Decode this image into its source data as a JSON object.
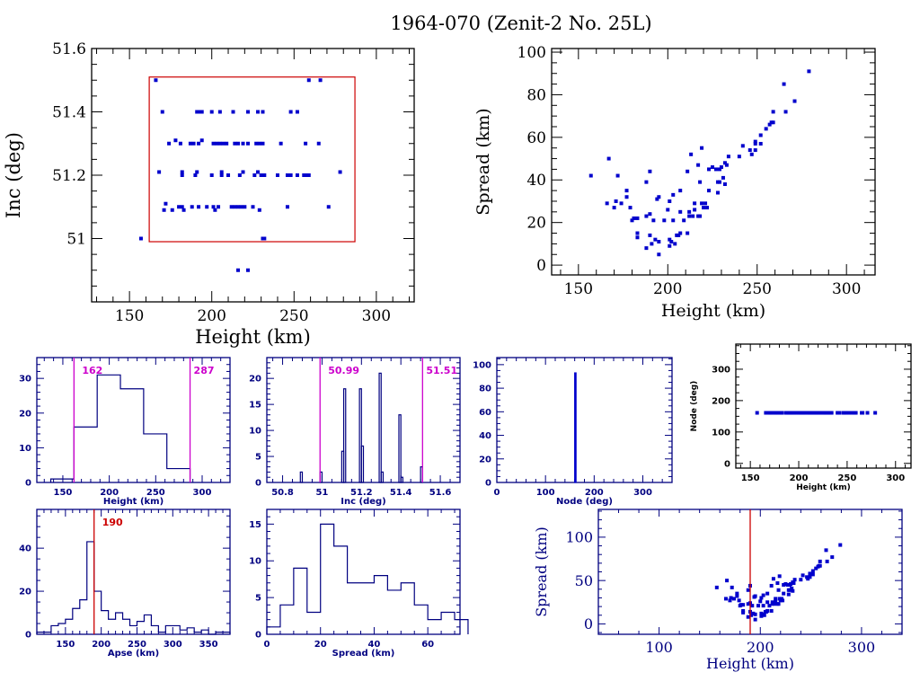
{
  "title": "1964-070 (Zenit-2 No. 25L)",
  "colors": {
    "points": "#0000cc",
    "frame_main": "#000000",
    "frame_small": "#000080",
    "box_red": "#cc0000",
    "limit_magenta": "#cc00cc",
    "marker_red": "#cc0000"
  },
  "chart_data": [
    {
      "id": "inc-vs-height",
      "type": "scatter",
      "title": "",
      "xlabel": "Height (km)",
      "ylabel": "Inc (deg)",
      "xlim": [
        127,
        323
      ],
      "ylim": [
        50.8,
        51.6
      ],
      "xticks": [
        150,
        200,
        250,
        300
      ],
      "yticks": [
        51,
        51.2,
        51.4,
        51.6
      ],
      "ytick_labels": [
        "51",
        "51.2",
        "51.4",
        "51.6"
      ],
      "selection_box": {
        "x": [
          162,
          287
        ],
        "y": [
          50.99,
          51.51
        ]
      },
      "points": [
        [
          166,
          51.5
        ],
        [
          259,
          51.5
        ],
        [
          266,
          51.5
        ],
        [
          170,
          51.4
        ],
        [
          191,
          51.4
        ],
        [
          193,
          51.4
        ],
        [
          194,
          51.4
        ],
        [
          200,
          51.4
        ],
        [
          205,
          51.4
        ],
        [
          213,
          51.4
        ],
        [
          222,
          51.4
        ],
        [
          228,
          51.4
        ],
        [
          231,
          51.4
        ],
        [
          248,
          51.4
        ],
        [
          252,
          51.4
        ],
        [
          174,
          51.3
        ],
        [
          178,
          51.31
        ],
        [
          181,
          51.3
        ],
        [
          187,
          51.3
        ],
        [
          189,
          51.3
        ],
        [
          192,
          51.3
        ],
        [
          194,
          51.31
        ],
        [
          201,
          51.3
        ],
        [
          203,
          51.3
        ],
        [
          205,
          51.3
        ],
        [
          207,
          51.3
        ],
        [
          209,
          51.3
        ],
        [
          214,
          51.3
        ],
        [
          216,
          51.3
        ],
        [
          219,
          51.3
        ],
        [
          222,
          51.3
        ],
        [
          227,
          51.3
        ],
        [
          229,
          51.3
        ],
        [
          231,
          51.3
        ],
        [
          242,
          51.3
        ],
        [
          257,
          51.3
        ],
        [
          265,
          51.3
        ],
        [
          168,
          51.21
        ],
        [
          182,
          51.2
        ],
        [
          182,
          51.21
        ],
        [
          190,
          51.2
        ],
        [
          191,
          51.21
        ],
        [
          200,
          51.2
        ],
        [
          206,
          51.2
        ],
        [
          206,
          51.21
        ],
        [
          210,
          51.2
        ],
        [
          217,
          51.2
        ],
        [
          219,
          51.21
        ],
        [
          226,
          51.2
        ],
        [
          228,
          51.21
        ],
        [
          230,
          51.2
        ],
        [
          232,
          51.2
        ],
        [
          240,
          51.2
        ],
        [
          246,
          51.2
        ],
        [
          248,
          51.2
        ],
        [
          252,
          51.2
        ],
        [
          256,
          51.2
        ],
        [
          258,
          51.2
        ],
        [
          259,
          51.2
        ],
        [
          278,
          51.21
        ],
        [
          171,
          51.09
        ],
        [
          172,
          51.11
        ],
        [
          176,
          51.09
        ],
        [
          180,
          51.1
        ],
        [
          182,
          51.1
        ],
        [
          183,
          51.09
        ],
        [
          188,
          51.1
        ],
        [
          192,
          51.1
        ],
        [
          197,
          51.1
        ],
        [
          201,
          51.1
        ],
        [
          202,
          51.09
        ],
        [
          204,
          51.1
        ],
        [
          212,
          51.1
        ],
        [
          214,
          51.1
        ],
        [
          216,
          51.1
        ],
        [
          218,
          51.1
        ],
        [
          220,
          51.1
        ],
        [
          225,
          51.1
        ],
        [
          229,
          51.09
        ],
        [
          246,
          51.1
        ],
        [
          271,
          51.1
        ],
        [
          157,
          51.0
        ],
        [
          231,
          51.0
        ],
        [
          232,
          51.0
        ],
        [
          216,
          50.9
        ],
        [
          222,
          50.9
        ]
      ]
    },
    {
      "id": "spread-vs-height",
      "type": "scatter",
      "xlabel": "Height (km)",
      "ylabel": "Spread (km)",
      "xlim": [
        135,
        316
      ],
      "ylim": [
        -4.6,
        101.7
      ],
      "xticks": [
        150,
        200,
        250,
        300
      ],
      "yticks": [
        0,
        20,
        40,
        60,
        80,
        100
      ],
      "points": [
        [
          157,
          42
        ],
        [
          167,
          50
        ],
        [
          172,
          42
        ],
        [
          166,
          29
        ],
        [
          171,
          30
        ],
        [
          170,
          27
        ],
        [
          174,
          29
        ],
        [
          177,
          35
        ],
        [
          177,
          32
        ],
        [
          179,
          27
        ],
        [
          180,
          21
        ],
        [
          181,
          22
        ],
        [
          183,
          22
        ],
        [
          183,
          15
        ],
        [
          183,
          13
        ],
        [
          188,
          39
        ],
        [
          188,
          23
        ],
        [
          188,
          8
        ],
        [
          190,
          44
        ],
        [
          190,
          24
        ],
        [
          190,
          14
        ],
        [
          191,
          10
        ],
        [
          192,
          21
        ],
        [
          193,
          12
        ],
        [
          194,
          31
        ],
        [
          195,
          32
        ],
        [
          195,
          11
        ],
        [
          195,
          5
        ],
        [
          198,
          21
        ],
        [
          200,
          26
        ],
        [
          201,
          30
        ],
        [
          201,
          12
        ],
        [
          201,
          9
        ],
        [
          202,
          11
        ],
        [
          203,
          33
        ],
        [
          203,
          21
        ],
        [
          204,
          10
        ],
        [
          205,
          14
        ],
        [
          206,
          14
        ],
        [
          207,
          35
        ],
        [
          207,
          25
        ],
        [
          207,
          15
        ],
        [
          209,
          21
        ],
        [
          211,
          44
        ],
        [
          211,
          15
        ],
        [
          212,
          25
        ],
        [
          212,
          23
        ],
        [
          213,
          52
        ],
        [
          214,
          23
        ],
        [
          215,
          26
        ],
        [
          215,
          29
        ],
        [
          217,
          47
        ],
        [
          217,
          23
        ],
        [
          218,
          23
        ],
        [
          218,
          39
        ],
        [
          219,
          55
        ],
        [
          219,
          29
        ],
        [
          220,
          27
        ],
        [
          221,
          29
        ],
        [
          222,
          27
        ],
        [
          223,
          45
        ],
        [
          223,
          35
        ],
        [
          225,
          46
        ],
        [
          227,
          45
        ],
        [
          228,
          34
        ],
        [
          228,
          39
        ],
        [
          229,
          45
        ],
        [
          229,
          39
        ],
        [
          230,
          46
        ],
        [
          231,
          41
        ],
        [
          232,
          48
        ],
        [
          232,
          38
        ],
        [
          233,
          47
        ],
        [
          234,
          51
        ],
        [
          240,
          51
        ],
        [
          242,
          56
        ],
        [
          246,
          54
        ],
        [
          247,
          52
        ],
        [
          249,
          54
        ],
        [
          249,
          57
        ],
        [
          249,
          58
        ],
        [
          252,
          57
        ],
        [
          252,
          61
        ],
        [
          255,
          64
        ],
        [
          257,
          66
        ],
        [
          258,
          67
        ],
        [
          259,
          67
        ],
        [
          259,
          72
        ],
        [
          265,
          85
        ],
        [
          266,
          72
        ],
        [
          271,
          77
        ],
        [
          279,
          91
        ]
      ]
    },
    {
      "id": "height-histogram",
      "type": "bar",
      "histogram": true,
      "xlabel": "Height (km)",
      "ylabel": "",
      "xlim": [
        122,
        330
      ],
      "ylim": [
        0,
        36
      ],
      "xticks": [
        150,
        200,
        250,
        300
      ],
      "yticks": [
        0,
        10,
        20,
        30
      ],
      "bin_edges": [
        137,
        162,
        187,
        212,
        237,
        262,
        287
      ],
      "values": [
        1,
        16,
        31,
        27,
        14,
        4
      ],
      "annotations": [
        {
          "x": 162,
          "label": "162"
        },
        {
          "x": 287,
          "label": "287"
        }
      ]
    },
    {
      "id": "inc-histogram",
      "type": "bar",
      "histogram": true,
      "xlabel": "Inc (deg)",
      "ylabel": "",
      "xlim": [
        50.72,
        51.7
      ],
      "ylim": [
        0,
        24
      ],
      "xticks": [
        50.8,
        51,
        51.2,
        51.4,
        51.6
      ],
      "xtick_labels": [
        "50.8",
        "51",
        "51.2",
        "51.4",
        "51.6"
      ],
      "yticks": [
        0,
        5,
        10,
        15,
        20
      ],
      "bins": [
        {
          "x0": 50.89,
          "x1": 50.9,
          "v": 2
        },
        {
          "x0": 50.99,
          "x1": 51.0,
          "v": 2
        },
        {
          "x0": 51.1,
          "x1": 51.11,
          "v": 6
        },
        {
          "x0": 51.11,
          "x1": 51.12,
          "v": 18
        },
        {
          "x0": 51.19,
          "x1": 51.2,
          "v": 18
        },
        {
          "x0": 51.2,
          "x1": 51.21,
          "v": 7
        },
        {
          "x0": 51.29,
          "x1": 51.3,
          "v": 21
        },
        {
          "x0": 51.3,
          "x1": 51.31,
          "v": 2
        },
        {
          "x0": 51.39,
          "x1": 51.4,
          "v": 13
        },
        {
          "x0": 51.4,
          "x1": 51.41,
          "v": 1
        },
        {
          "x0": 51.5,
          "x1": 51.51,
          "v": 3
        }
      ],
      "annotations": [
        {
          "x": 50.99,
          "label": "50.99"
        },
        {
          "x": 51.51,
          "label": "51.51"
        }
      ]
    },
    {
      "id": "node-histogram",
      "type": "bar",
      "histogram": true,
      "xlabel": "Node (deg)",
      "ylabel": "",
      "xlim": [
        0,
        360
      ],
      "ylim": [
        0,
        106
      ],
      "xticks": [
        0,
        100,
        200,
        300
      ],
      "yticks": [
        0,
        20,
        40,
        60,
        80,
        100
      ],
      "bins": [
        {
          "x0": 160,
          "x1": 162,
          "v": 93
        }
      ]
    },
    {
      "id": "node-vs-height",
      "type": "scatter",
      "xlabel": "Height (km)",
      "ylabel": "Node (deg)",
      "xlim": [
        135,
        316
      ],
      "ylim": [
        -15,
        380
      ],
      "xticks": [
        150,
        200,
        250,
        300
      ],
      "yticks": [
        0,
        100,
        200,
        300
      ],
      "node_value": 161,
      "heights": [
        157,
        166,
        168,
        170,
        171,
        172,
        174,
        176,
        177,
        178,
        180,
        181,
        182,
        183,
        187,
        188,
        189,
        190,
        191,
        192,
        193,
        194,
        195,
        197,
        198,
        200,
        201,
        202,
        203,
        204,
        205,
        206,
        207,
        209,
        210,
        211,
        212,
        213,
        214,
        215,
        216,
        217,
        218,
        219,
        220,
        221,
        222,
        223,
        225,
        226,
        227,
        228,
        229,
        230,
        231,
        232,
        233,
        234,
        240,
        242,
        246,
        247,
        248,
        249,
        252,
        255,
        257,
        258,
        259,
        265,
        266,
        271,
        279
      ]
    },
    {
      "id": "apse-histogram",
      "type": "bar",
      "histogram": true,
      "xlabel": "Apse (km)",
      "ylabel": "",
      "xlim": [
        110,
        380
      ],
      "ylim": [
        0,
        58
      ],
      "xticks": [
        150,
        200,
        250,
        300,
        350
      ],
      "yticks": [
        0,
        20,
        40
      ],
      "bin_start": 110,
      "bin_width": 10,
      "values": [
        1,
        1,
        4,
        5,
        7,
        12,
        16,
        43,
        20,
        11,
        7,
        10,
        7,
        4,
        6,
        9,
        4,
        1,
        4,
        4,
        2,
        3,
        1,
        2,
        0,
        1,
        1
      ],
      "annotations": [
        {
          "x": 190,
          "label": "190"
        }
      ]
    },
    {
      "id": "spread-histogram",
      "type": "bar",
      "histogram": true,
      "xlabel": "Spread (km)",
      "ylabel": "",
      "xlim": [
        0,
        72
      ],
      "ylim": [
        0,
        17
      ],
      "xticks": [
        0,
        20,
        40,
        60
      ],
      "yticks": [
        0,
        5,
        10,
        15
      ],
      "bin_start": 0,
      "bin_width": 5,
      "values": [
        1,
        4,
        9,
        3,
        15,
        12,
        7,
        7,
        8,
        6,
        7,
        4,
        2,
        3,
        2
      ]
    },
    {
      "id": "spread-vs-height-wide",
      "type": "scatter",
      "xlabel": "Height (km)",
      "ylabel": "Spread (km)",
      "xlim": [
        40,
        340
      ],
      "ylim": [
        -12,
        132
      ],
      "xticks": [
        100,
        200,
        300
      ],
      "yticks": [
        0,
        50,
        100
      ],
      "marker_x": 190,
      "points_ref": "spread-vs-height"
    }
  ]
}
